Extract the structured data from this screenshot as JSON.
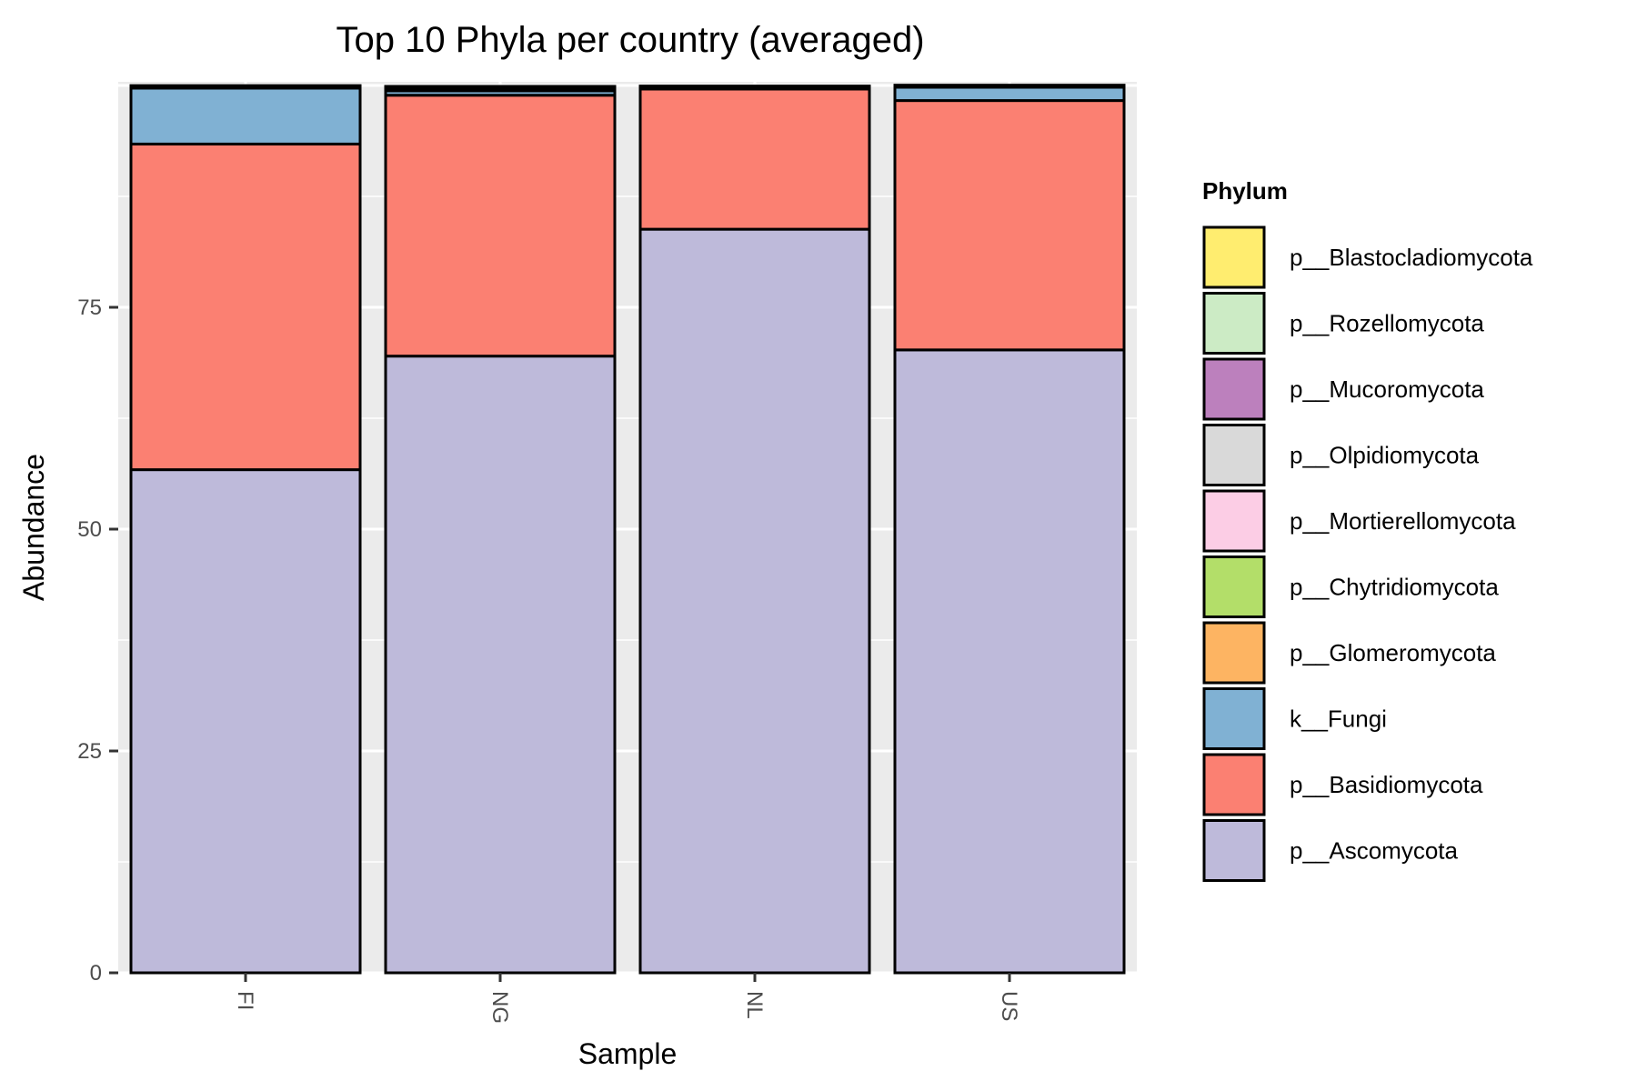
{
  "chart_data": {
    "type": "bar",
    "stacked": true,
    "title": "Top 10 Phyla per country (averaged)",
    "xlabel": "Sample",
    "ylabel": "Abundance",
    "categories": [
      "FI",
      "NG",
      "NL",
      "US"
    ],
    "ylim": [
      0,
      100
    ],
    "yticks": [
      0,
      25,
      50,
      75
    ],
    "grid": true,
    "legend_position": "right",
    "legend_title": "Phylum",
    "legend_order": [
      "p__Blastocladiomycota",
      "p__Rozellomycota",
      "p__Mucoromycota",
      "p__Olpidiomycota",
      "p__Mortierellomycota",
      "p__Chytridiomycota",
      "p__Glomeromycota",
      "k__Fungi",
      "p__Basidiomycota",
      "p__Ascomycota"
    ],
    "series": [
      {
        "name": "p__Ascomycota",
        "color": "#BEBADA",
        "values": [
          56.7,
          69.5,
          83.8,
          70.2
        ]
      },
      {
        "name": "p__Basidiomycota",
        "color": "#FB8072",
        "values": [
          36.7,
          29.4,
          15.8,
          28.1
        ]
      },
      {
        "name": "k__Fungi",
        "color": "#80B1D3",
        "values": [
          6.3,
          0.5,
          0.1,
          1.5
        ]
      },
      {
        "name": "p__Glomeromycota",
        "color": "#FDB462",
        "values": [
          0.1,
          0.1,
          0.05,
          0.05
        ]
      },
      {
        "name": "p__Chytridiomycota",
        "color": "#B3DE69",
        "values": [
          0.05,
          0.1,
          0.05,
          0.05
        ]
      },
      {
        "name": "p__Mortierellomycota",
        "color": "#FCCDE5",
        "values": [
          0.05,
          0.1,
          0.05,
          0.05
        ]
      },
      {
        "name": "p__Olpidiomycota",
        "color": "#D9D9D9",
        "values": [
          0.02,
          0.05,
          0.02,
          0.02
        ]
      },
      {
        "name": "p__Mucoromycota",
        "color": "#BC80BD",
        "values": [
          0.02,
          0.05,
          0.02,
          0.02
        ]
      },
      {
        "name": "p__Rozellomycota",
        "color": "#CCEBC5",
        "values": [
          0.02,
          0.05,
          0.02,
          0.02
        ]
      },
      {
        "name": "p__Blastocladiomycota",
        "color": "#FFED6F",
        "values": [
          0.02,
          0.05,
          0.02,
          0.02
        ]
      }
    ]
  }
}
